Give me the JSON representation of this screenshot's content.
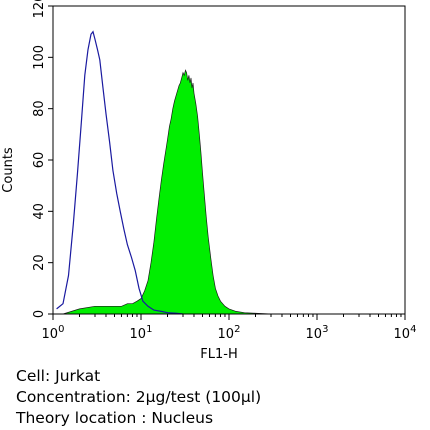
{
  "chart_data": {
    "type": "histogram-overlay",
    "xlabel": "FL1-H",
    "ylabel": "Counts",
    "x_scale": "log",
    "xlim": [
      1,
      10000
    ],
    "ylim": [
      0,
      120
    ],
    "x_ticks": [
      {
        "value": 1,
        "base": "10",
        "exp": "0"
      },
      {
        "value": 10,
        "base": "10",
        "exp": "1"
      },
      {
        "value": 100,
        "base": "10",
        "exp": "2"
      },
      {
        "value": 1000,
        "base": "10",
        "exp": "3"
      },
      {
        "value": 10000,
        "base": "10",
        "exp": "4"
      }
    ],
    "y_ticks": [
      0,
      20,
      40,
      60,
      80,
      100,
      120
    ],
    "grid": false,
    "legend": "none",
    "series": [
      {
        "style": "outline",
        "color": "#1a1aa0",
        "x": [
          1.1,
          1.3,
          1.5,
          1.7,
          1.9,
          2.1,
          2.3,
          2.5,
          2.7,
          2.85,
          3.0,
          3.2,
          3.4,
          3.7,
          4.0,
          4.4,
          4.8,
          5.3,
          5.8,
          6.4,
          7.0,
          7.8,
          8.6,
          9.5,
          10.5,
          12,
          14,
          17,
          20,
          25,
          30
        ],
        "y": [
          2,
          4,
          15,
          35,
          55,
          75,
          93,
          103,
          109,
          110,
          107,
          103,
          99,
          88,
          78,
          67,
          56,
          47,
          40,
          33,
          27,
          22,
          17,
          10,
          5,
          3,
          1.5,
          1,
          0.5,
          0.3,
          0
        ]
      },
      {
        "style": "filled",
        "color": "#00ee00",
        "x": [
          1.3,
          2,
          3,
          4,
          5,
          6,
          7,
          8,
          9,
          10,
          11,
          12,
          13,
          14,
          15,
          16,
          17,
          18,
          19,
          20,
          21,
          22,
          23,
          24,
          25,
          26,
          27,
          28,
          29,
          30,
          31,
          32,
          33,
          34,
          35,
          36,
          37,
          38,
          39,
          40,
          42,
          44,
          46,
          48,
          50,
          52,
          55,
          58,
          62,
          66,
          70,
          75,
          80,
          90,
          100,
          120,
          150,
          200,
          300
        ],
        "y": [
          0,
          2,
          3,
          3,
          3,
          3,
          4,
          4,
          5,
          6,
          9,
          13,
          20,
          28,
          37,
          45,
          52,
          58,
          63,
          68,
          73,
          76,
          80,
          83,
          85,
          87,
          89,
          90,
          92,
          94,
          93,
          95,
          94,
          91,
          93,
          90,
          92,
          88,
          90,
          86,
          82,
          77,
          70,
          63,
          55,
          48,
          38,
          30,
          22,
          15,
          10,
          7,
          5,
          3,
          2,
          1,
          0.5,
          0.3,
          0
        ]
      }
    ]
  },
  "captions": {
    "cell": "Cell: Jurkat",
    "concentration": "Concentration: 2μg/test (100μl)",
    "location": "Theory location : Nucleus"
  }
}
